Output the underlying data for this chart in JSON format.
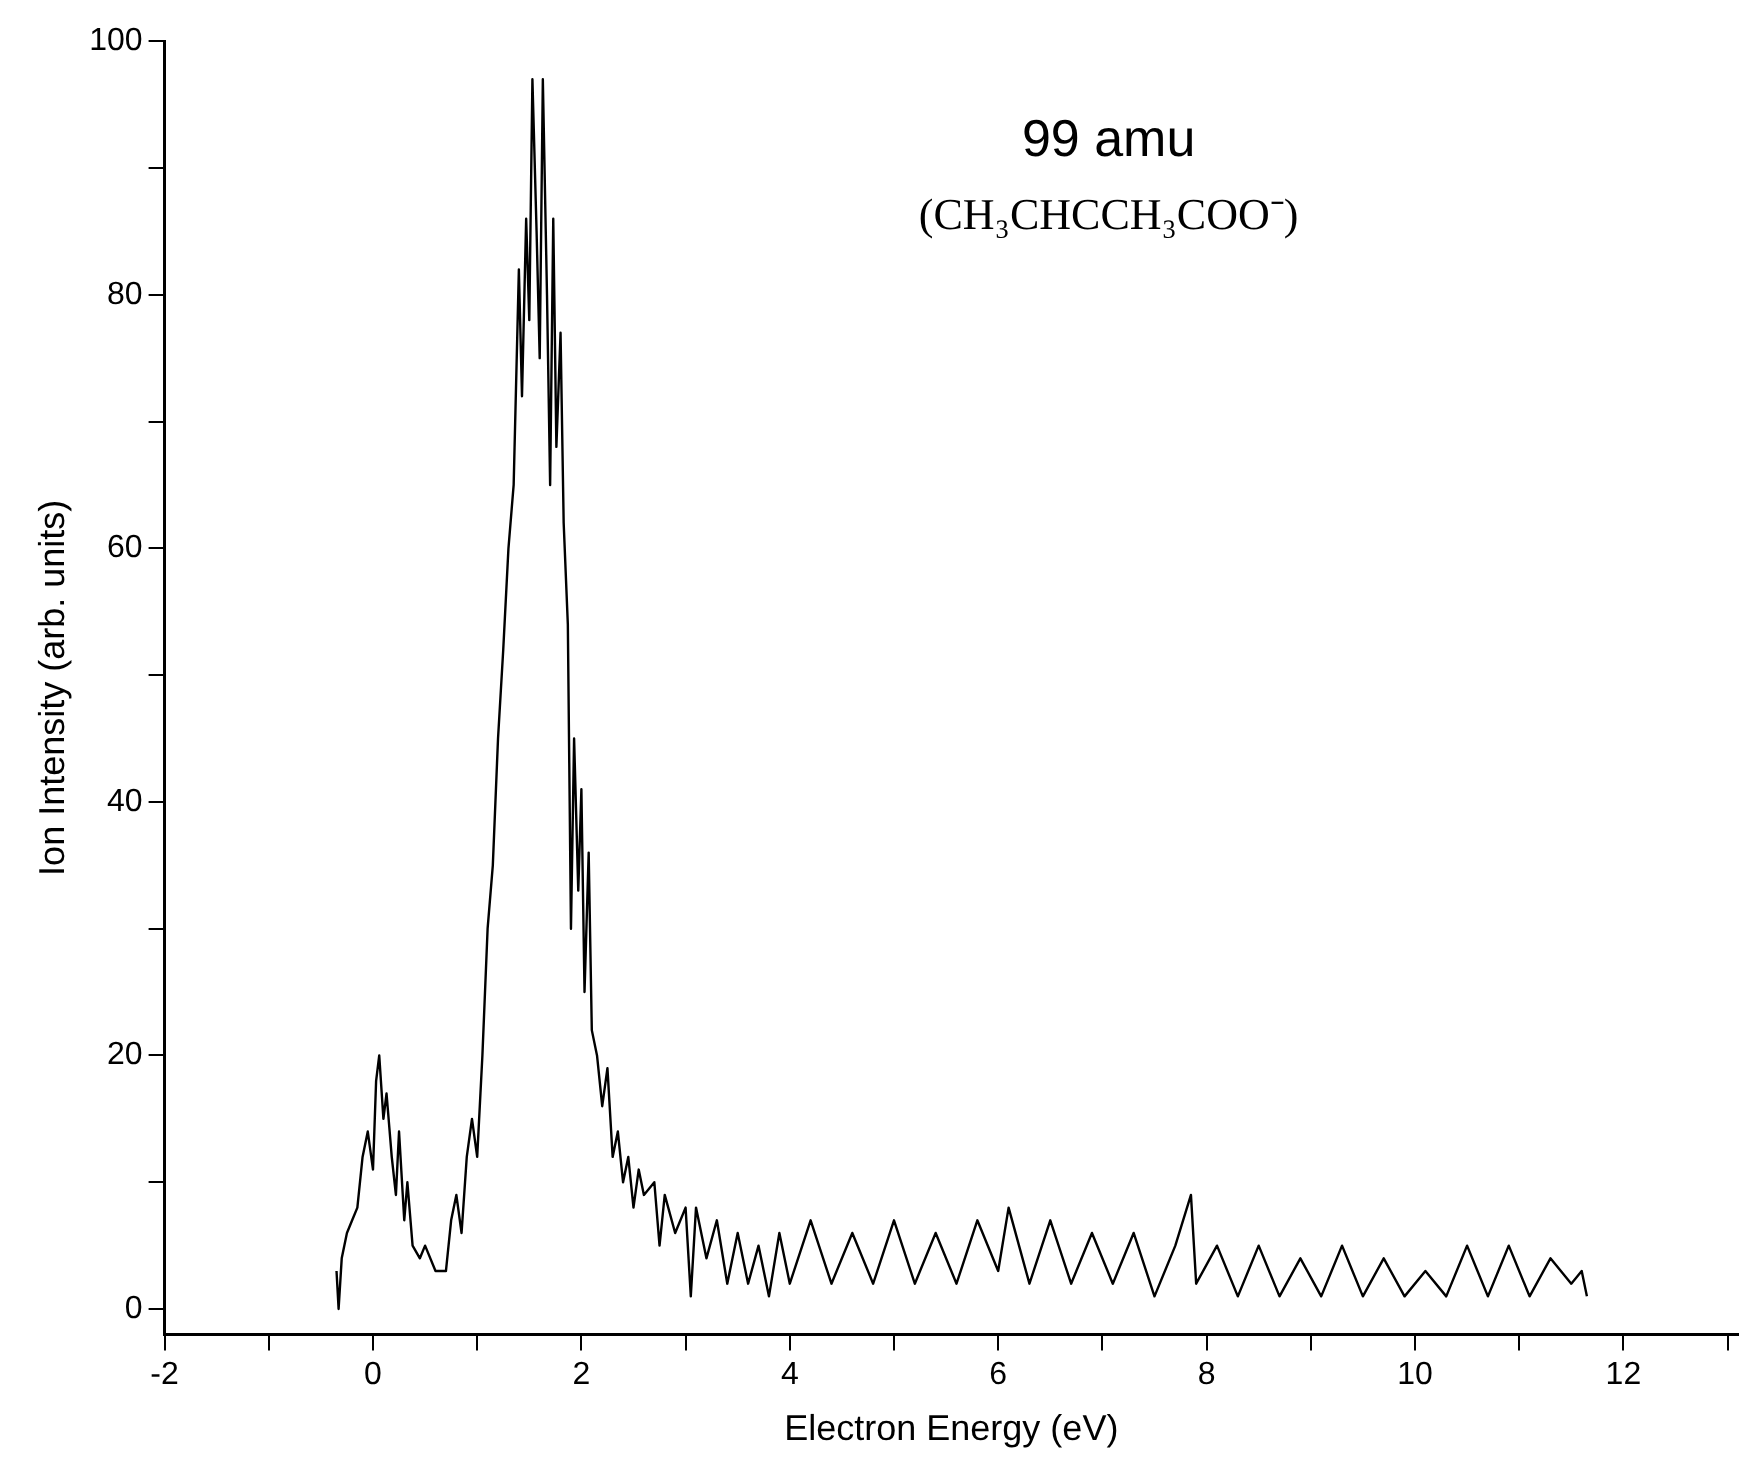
{
  "chart_data": {
    "type": "line",
    "xlabel": "Electron Energy (eV)",
    "ylabel": "Ion Intensity (arb. units)",
    "annotations": [
      "99 amu",
      "(CH₃CHCCH₃COO⁻)"
    ],
    "x": [
      -0.35,
      -0.33,
      -0.3,
      -0.25,
      -0.2,
      -0.15,
      -0.1,
      -0.05,
      0,
      0.03,
      0.06,
      0.1,
      0.13,
      0.18,
      0.22,
      0.25,
      0.3,
      0.33,
      0.38,
      0.45,
      0.5,
      0.6,
      0.7,
      0.75,
      0.8,
      0.85,
      0.9,
      0.95,
      1.0,
      1.05,
      1.1,
      1.15,
      1.2,
      1.25,
      1.3,
      1.35,
      1.4,
      1.43,
      1.47,
      1.5,
      1.53,
      1.57,
      1.6,
      1.63,
      1.67,
      1.7,
      1.73,
      1.76,
      1.8,
      1.83,
      1.87,
      1.9,
      1.93,
      1.97,
      2.0,
      2.03,
      2.07,
      2.1,
      2.15,
      2.2,
      2.25,
      2.3,
      2.35,
      2.4,
      2.45,
      2.5,
      2.55,
      2.6,
      2.7,
      2.75,
      2.8,
      2.9,
      3.0,
      3.05,
      3.1,
      3.2,
      3.3,
      3.4,
      3.5,
      3.6,
      3.7,
      3.8,
      3.9,
      4.0,
      4.2,
      4.4,
      4.6,
      4.8,
      5.0,
      5.2,
      5.4,
      5.6,
      5.8,
      6.0,
      6.1,
      6.3,
      6.5,
      6.7,
      6.9,
      7.1,
      7.3,
      7.5,
      7.7,
      7.85,
      7.9,
      8.1,
      8.3,
      8.5,
      8.7,
      8.9,
      9.1,
      9.3,
      9.5,
      9.7,
      9.9,
      10.1,
      10.3,
      10.5,
      10.7,
      10.9,
      11.1,
      11.3,
      11.5,
      11.6,
      11.65
    ],
    "series": [
      {
        "color": "#000000",
        "values": [
          3,
          0,
          4,
          6,
          7,
          8,
          12,
          14,
          11,
          18,
          20,
          15,
          17,
          12,
          9,
          14,
          7,
          10,
          5,
          4,
          5,
          3,
          3,
          7,
          9,
          6,
          12,
          15,
          12,
          20,
          30,
          35,
          45,
          52,
          60,
          65,
          82,
          72,
          86,
          78,
          97,
          85,
          75,
          97,
          80,
          65,
          86,
          68,
          77,
          62,
          54,
          30,
          45,
          33,
          41,
          25,
          36,
          22,
          20,
          16,
          19,
          12,
          14,
          10,
          12,
          8,
          11,
          9,
          10,
          5,
          9,
          6,
          8,
          1,
          8,
          4,
          7,
          2,
          6,
          2,
          5,
          1,
          6,
          2,
          7,
          2,
          6,
          2,
          7,
          2,
          6,
          2,
          7,
          3,
          8,
          2,
          7,
          2,
          6,
          2,
          6,
          1,
          5,
          9,
          2,
          5,
          1,
          5,
          1,
          4,
          1,
          5,
          1,
          4,
          1,
          3,
          1,
          5,
          1,
          5,
          1,
          4,
          2,
          3,
          1
        ]
      }
    ],
    "xlim": [
      -2,
      13.1
    ],
    "xticks": [
      -2,
      {
        "value": -1,
        "label": null
      },
      0,
      {
        "value": 1,
        "label": null
      },
      2,
      {
        "value": 3,
        "label": null
      },
      4,
      {
        "value": 5,
        "label": null
      },
      6,
      {
        "value": 7,
        "label": null
      },
      8,
      {
        "value": 9,
        "label": null
      },
      10,
      {
        "value": 11,
        "label": null
      },
      12,
      {
        "value": 13,
        "label": null
      }
    ],
    "ylim": [
      -2,
      100
    ],
    "yticks": [
      0,
      {
        "value": 10,
        "label": null
      },
      20,
      {
        "value": 30,
        "label": null
      },
      40,
      {
        "value": 50,
        "label": null
      },
      60,
      {
        "value": 70,
        "label": null
      },
      80,
      {
        "value": 90,
        "label": null
      },
      100
    ],
    "grid": false,
    "legend": false,
    "marker": "none",
    "line_style": "solid"
  }
}
